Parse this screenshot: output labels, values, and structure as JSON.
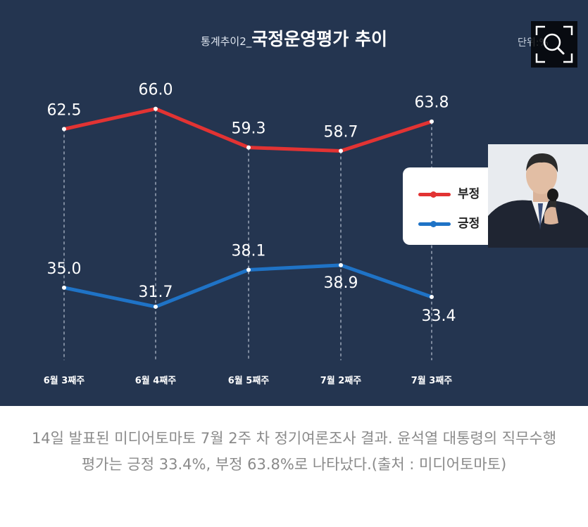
{
  "chart": {
    "title_prefix": "통계추이2_",
    "title_main": "국정운영평가 추이",
    "unit_label": "단위:%"
  },
  "chart_data": {
    "type": "line",
    "categories": [
      "6월 3째주",
      "6월 4째주",
      "6월 5째주",
      "7월 2째주",
      "7월 3째주"
    ],
    "series": [
      {
        "name": "부정",
        "values": [
          62.5,
          66.0,
          59.3,
          58.7,
          63.8
        ],
        "color": "#e23333"
      },
      {
        "name": "긍정",
        "values": [
          35.0,
          31.7,
          38.1,
          38.9,
          33.4
        ],
        "color": "#1f73c6"
      }
    ],
    "legend_position": "right",
    "grid": false
  },
  "caption": {
    "text": "14일 발표된 미디어토마토 7월 2주 차 정기여론조사 결과. 윤석열 대통령의 직무수행평가는 긍정 33.4%, 부정 63.8%로 나타났다.(출처 : 미디어토마토)"
  },
  "icons": {
    "zoom": "magnifier-zoom-icon",
    "portrait": "person-portrait"
  },
  "colors": {
    "panel_bg": "#243550",
    "negative": "#e23333",
    "positive": "#1f73c6"
  }
}
